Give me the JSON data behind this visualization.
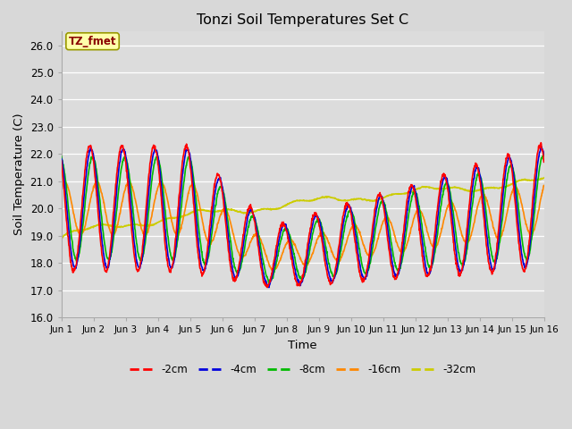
{
  "title": "Tonzi Soil Temperatures Set C",
  "xlabel": "Time",
  "ylabel": "Soil Temperature (C)",
  "ylim": [
    16.0,
    26.5
  ],
  "yticks": [
    16.0,
    17.0,
    18.0,
    19.0,
    20.0,
    21.0,
    22.0,
    23.0,
    24.0,
    25.0,
    26.0
  ],
  "xtick_labels": [
    "Jun 1",
    "Jun 2",
    "Jun 3",
    "Jun 4",
    "Jun 5",
    "Jun 6",
    "Jun 7",
    "Jun 8",
    "Jun 9",
    "Jun 10",
    "Jun 11",
    "Jun 12",
    "Jun 13",
    "Jun 14",
    "Jun 15",
    "Jun 16"
  ],
  "label_box_text": "TZ_fmet",
  "background_color": "#dcdcdc",
  "fig_background": "#d8d8d8",
  "line_2cm_color": "#ff0000",
  "line_4cm_color": "#0000dd",
  "line_8cm_color": "#00bb00",
  "line_16cm_color": "#ff8800",
  "line_32cm_color": "#cccc00",
  "legend_labels": [
    "-2cm",
    "-4cm",
    "-8cm",
    "-16cm",
    "-32cm"
  ],
  "legend_colors": [
    "#ff0000",
    "#0000dd",
    "#00bb00",
    "#ff8800",
    "#cccc00"
  ],
  "linewidth": 1.2
}
